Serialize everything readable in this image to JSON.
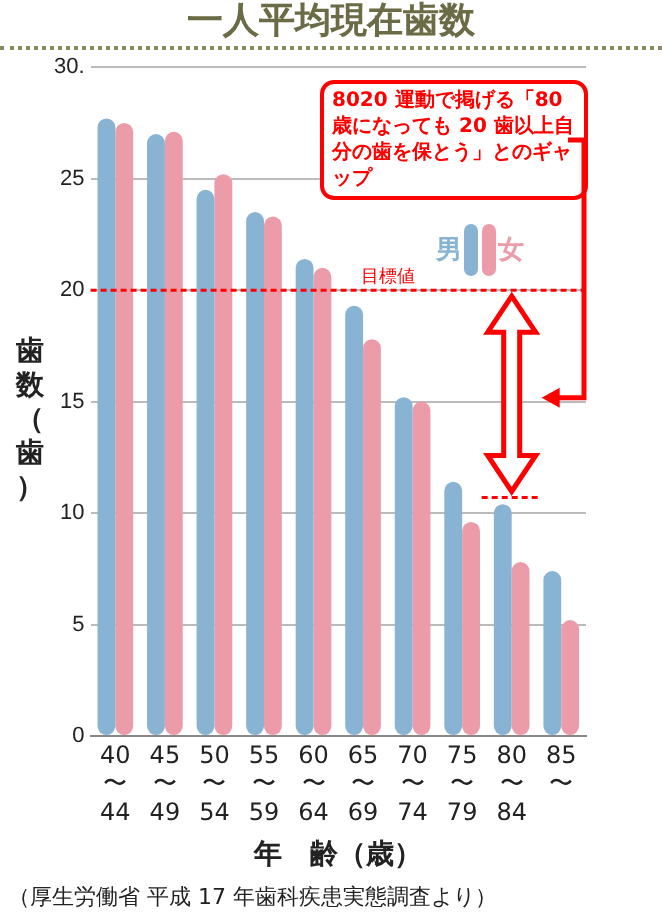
{
  "chart_data": {
    "type": "bar",
    "title": "一人平均現在歯数",
    "xlabel": "年　齢（歳）",
    "ylabel": "歯数（歯）",
    "categories": [
      "40\n〜\n44",
      "45\n〜\n49",
      "50\n〜\n54",
      "55\n〜\n59",
      "60\n〜\n64",
      "65\n〜\n69",
      "70\n〜\n74",
      "75\n〜\n79",
      "80\n〜\n84",
      "85\n〜"
    ],
    "series": [
      {
        "name": "男",
        "color": "#89b3d3",
        "values": [
          27.7,
          27.0,
          24.5,
          23.5,
          21.4,
          19.3,
          15.2,
          11.4,
          10.4,
          7.4
        ]
      },
      {
        "name": "女",
        "color": "#ec9ca8",
        "values": [
          27.5,
          27.1,
          25.2,
          23.3,
          21.0,
          17.8,
          15.0,
          9.6,
          7.8,
          5.2
        ]
      }
    ],
    "ylim": [
      0,
      30
    ],
    "yticks": [
      0,
      5,
      10,
      15,
      20,
      25,
      {
        "value": 30,
        "label": "30."
      }
    ],
    "grid": "y",
    "legend": "top right",
    "ref_lines": [
      {
        "axis": "y",
        "value": 20,
        "label": "目標値",
        "color": "#ff0000",
        "line_style": "dashed"
      },
      {
        "axis": "y",
        "value": 10.7,
        "color": "#ff0000",
        "line_style": "dashed"
      }
    ],
    "annotations": [
      "8020 運動で掲げる「80 歳になっても 20 歯以上自分の歯を保とう」とのギャップ",
      "（厚生労働省 平成 17 年歯科疾患実態調査より）"
    ]
  }
}
